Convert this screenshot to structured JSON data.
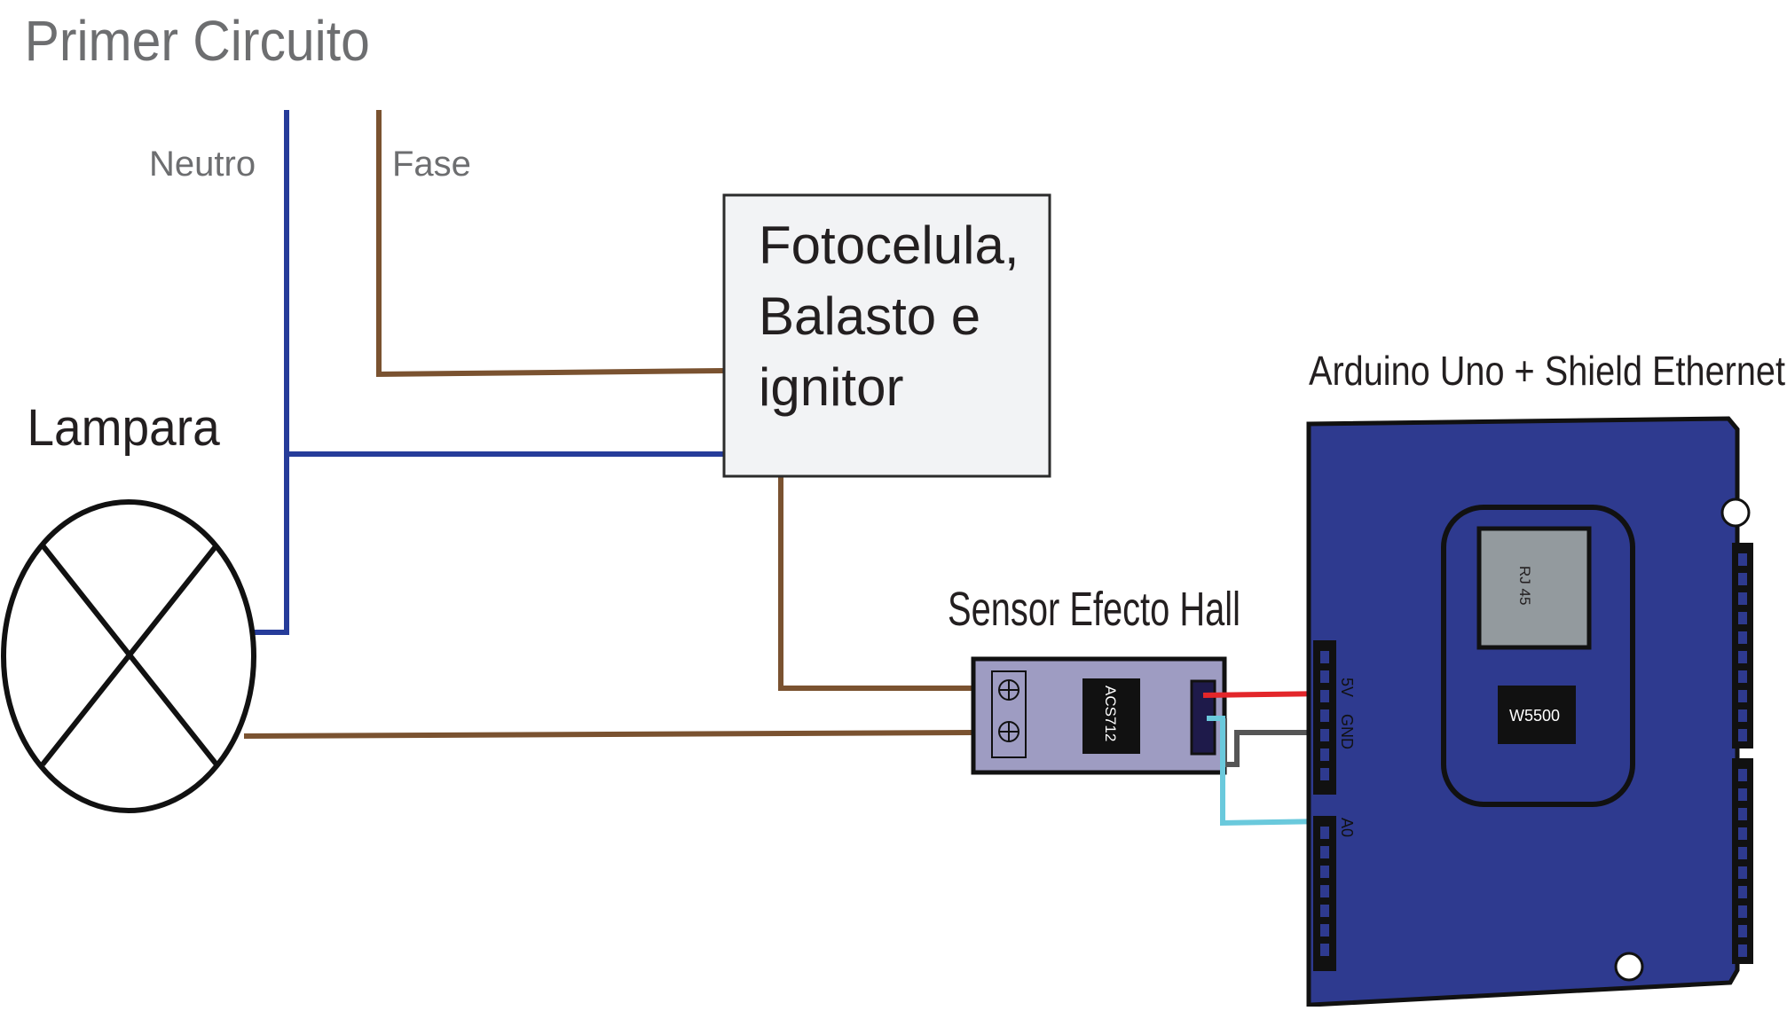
{
  "title": "Primer Circuito",
  "labels": {
    "neutro": "Neutro",
    "fase": "Fase",
    "lampara": "Lampara",
    "box_line1": "Fotocelula,",
    "box_line2": "Balasto e",
    "box_line3": "ignitor",
    "sensor_title": "Sensor Efecto Hall",
    "sensor_chip": "ACS712",
    "arduino_title": "Arduino Uno + Shield Ethernet",
    "rj45": "RJ 45",
    "w5500": "W5500",
    "pin_5v": "5V",
    "pin_gnd": "GND",
    "pin_a0": "A0"
  },
  "colors": {
    "neutral_wire": "#263c9a",
    "phase_wire": "#7a5230",
    "board_blue": "#2e3a8f",
    "sensor_board": "#9e9cc2",
    "wire_5v": "#e3262a",
    "wire_gnd": "#555555",
    "wire_signal": "#6ac9dc",
    "title_gray": "#6d6e70"
  },
  "icons": {
    "lamp": "lamp-x-symbol",
    "screw_terminal": "plus-circle-icon"
  }
}
